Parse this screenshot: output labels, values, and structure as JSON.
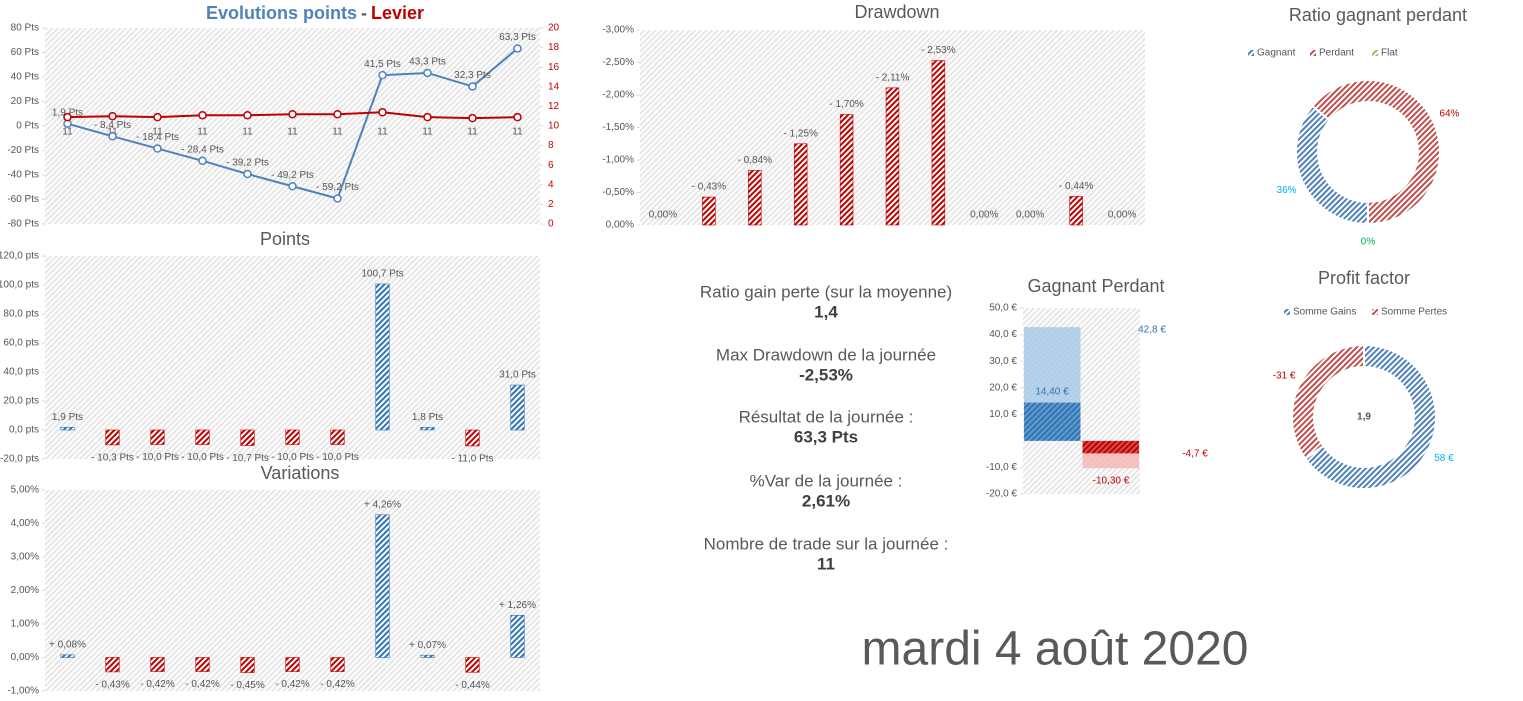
{
  "chart_data": [
    {
      "type": "line",
      "title": [
        "Evolutions points",
        "-",
        "Levier"
      ],
      "categories": [
        "11",
        "11",
        "11",
        "11",
        "11",
        "11",
        "11",
        "11",
        "11",
        "11",
        "11"
      ],
      "series": [
        {
          "color": "#4f81bd",
          "values": [
            1.9,
            -8.4,
            -18.4,
            -28.4,
            -39.2,
            -49.2,
            -59.2,
            41.5,
            43.3,
            32.3,
            63.3
          ],
          "value_labels": [
            "1,9 Pts",
            "- 8,4 Pts",
            "- 18,4 Pts",
            "- 28,4 Pts",
            "- 39,2 Pts",
            "- 49,2 Pts",
            "- 59,2 Pts",
            "41,5 Pts",
            "43,3 Pts",
            "32,3 Pts",
            "63,3 Pts"
          ]
        },
        {
          "color": "#c00000",
          "axis": "y2",
          "values": [
            10.9,
            11,
            10.9,
            11.1,
            11.1,
            11.2,
            11.2,
            11.4,
            10.9,
            10.8,
            10.9
          ]
        }
      ],
      "ylim": [
        -80,
        80
      ],
      "yticks": [
        {
          "value": -80,
          "label": "-80 Pts"
        },
        {
          "value": -60,
          "label": "-60 Pts"
        },
        {
          "value": -40,
          "label": "-40 Pts"
        },
        {
          "value": -20,
          "label": "-20 Pts"
        },
        {
          "value": 0,
          "label": "0 Pts"
        },
        {
          "value": 20,
          "label": "20 Pts"
        },
        {
          "value": 40,
          "label": "40 Pts"
        },
        {
          "value": 60,
          "label": "60 Pts"
        },
        {
          "value": 80,
          "label": "80 Pts"
        }
      ],
      "y2lim": [
        0,
        20
      ],
      "y2ticks": [
        0,
        2,
        4,
        6,
        8,
        10,
        12,
        14,
        16,
        18,
        20
      ],
      "grid": false
    },
    {
      "type": "bar",
      "title": "Points",
      "categories": [
        null,
        null,
        null,
        null,
        null,
        null,
        null,
        null,
        null,
        null,
        null
      ],
      "values": [
        1.9,
        -10.3,
        -10,
        -10,
        -10.7,
        -10,
        -10,
        100.7,
        1.8,
        -11,
        31
      ],
      "value_labels": [
        "1,9 Pts",
        "- 10,3 Pts",
        "- 10,0 Pts",
        "- 10,0 Pts",
        "- 10,7 Pts",
        "- 10,0 Pts",
        "- 10,0 Pts",
        "100,7 Pts",
        "1,8 Pts",
        "- 11,0 Pts",
        "31,0 Pts"
      ],
      "positive_color": "#2e75b6",
      "negative_color": "#c00000",
      "ylim": [
        -20,
        120
      ],
      "yticks": [
        {
          "value": -20,
          "label": "-20,0 pts"
        },
        {
          "value": 0,
          "label": "0,0 pts"
        },
        {
          "value": 20,
          "label": "20,0 pts"
        },
        {
          "value": 40,
          "label": "40,0 pts"
        },
        {
          "value": 60,
          "label": "60,0 pts"
        },
        {
          "value": 80,
          "label": "80,0 pts"
        },
        {
          "value": 100,
          "label": "100,0 pts"
        },
        {
          "value": 120,
          "label": "120,0 pts"
        }
      ],
      "grid": false
    },
    {
      "type": "bar",
      "title": "Variations",
      "categories": [
        null,
        null,
        null,
        null,
        null,
        null,
        null,
        null,
        null,
        null,
        null
      ],
      "values": [
        0.08,
        -0.43,
        -0.42,
        -0.42,
        -0.45,
        -0.42,
        -0.42,
        4.26,
        0.07,
        -0.44,
        1.26
      ],
      "value_labels": [
        "+ 0,08%",
        "- 0,43%",
        "- 0,42%",
        "- 0,42%",
        "- 0,45%",
        "- 0,42%",
        "- 0,42%",
        "+ 4,26%",
        "+ 0,07%",
        "- 0,44%",
        "+ 1,26%"
      ],
      "positive_color": "#2e75b6",
      "negative_color": "#c00000",
      "ylim": [
        -1,
        5
      ],
      "yticks": [
        {
          "value": -1,
          "label": "-1,00%"
        },
        {
          "value": 0,
          "label": "0,00%"
        },
        {
          "value": 1,
          "label": "1,00%"
        },
        {
          "value": 2,
          "label": "2,00%"
        },
        {
          "value": 3,
          "label": "3,00%"
        },
        {
          "value": 4,
          "label": "4,00%"
        },
        {
          "value": 5,
          "label": "5,00%"
        }
      ],
      "grid": false
    },
    {
      "type": "bar",
      "title": "Drawdown",
      "categories": [
        null,
        null,
        null,
        null,
        null,
        null,
        null,
        null,
        null,
        null,
        null
      ],
      "values": [
        0,
        -0.43,
        -0.84,
        -1.25,
        -1.7,
        -2.11,
        -2.53,
        0,
        0,
        -0.44,
        0
      ],
      "value_labels": [
        "0,00%",
        "- 0,43%",
        "- 0,84%",
        "- 1,25%",
        "- 1,70%",
        "- 2,11%",
        "- 2,53%",
        "0,00%",
        "0,00%",
        "- 0,44%",
        "0,00%"
      ],
      "color": "#c00000",
      "ylim": [
        0,
        -3
      ],
      "yticks": [
        {
          "value": 0,
          "label": "0,00%"
        },
        {
          "value": -0.5,
          "label": "-0,50%"
        },
        {
          "value": -1,
          "label": "-1,00%"
        },
        {
          "value": -1.5,
          "label": "-1,50%"
        },
        {
          "value": -2,
          "label": "-2,00%"
        },
        {
          "value": -2.5,
          "label": "-2,50%"
        },
        {
          "value": -3,
          "label": "-3,00%"
        }
      ],
      "grid": false
    },
    {
      "type": "pie",
      "title": "Ratio gagnant perdant",
      "categories": [
        "Gagnant",
        "Perdant",
        "Flat"
      ],
      "values": [
        36,
        64,
        0
      ],
      "value_labels": [
        "36%",
        "64%",
        "0%"
      ],
      "colors": [
        "#4f81bd",
        "#c0504d",
        "#9bbb59"
      ],
      "label_colors": [
        "#00b0f0",
        "#c00000",
        "#00b050"
      ],
      "legend": "top"
    },
    {
      "type": "pie",
      "title": "Profit factor",
      "categories": [
        "Somme Gains",
        "Somme Pertes"
      ],
      "values": [
        58,
        -31
      ],
      "value_labels": [
        "58 €",
        "-31 €"
      ],
      "colors": [
        "#4f81bd",
        "#c0504d"
      ],
      "label_colors": [
        "#00b0f0",
        "#c00000"
      ],
      "center_label": "1,9",
      "legend": "top"
    },
    {
      "type": "bar",
      "title": "Gagnant Perdant",
      "categories": [
        null,
        null
      ],
      "series": [
        {
          "values": [
            42.8,
            -10.3
          ],
          "value_labels": [
            "42,8 €",
            "-10,30 €"
          ],
          "colors": [
            "#9dc3e6",
            "#f4b0b0"
          ],
          "label_colors": [
            "#2e75b6",
            "#c00000"
          ]
        },
        {
          "values": [
            14.4,
            -4.7
          ],
          "value_labels": [
            "14,40 €",
            "-4,7 €"
          ],
          "colors": [
            "#2e75b6",
            "#c00000"
          ],
          "label_colors": [
            "#2e75b6",
            "#c00000"
          ]
        }
      ],
      "ylim": [
        -20,
        50
      ],
      "yticks": [
        {
          "value": -20,
          "label": "-20,0 €"
        },
        {
          "value": -10,
          "label": "-10,0 €"
        },
        {
          "value": 10,
          "label": "10,0 €"
        },
        {
          "value": 20,
          "label": "20,0 €"
        },
        {
          "value": 30,
          "label": "30,0 €"
        },
        {
          "value": 40,
          "label": "40,0 €"
        },
        {
          "value": 50,
          "label": "50,0 €"
        }
      ],
      "grid": false
    }
  ],
  "stats": [
    {
      "label": "Ratio gain perte (sur la moyenne)",
      "value": "1,4"
    },
    {
      "label": "Max Drawdown de la journée",
      "value": "-2,53%"
    },
    {
      "label": "Résultat de la journée :",
      "value": "63,3 Pts"
    },
    {
      "label": "%Var de la journée :",
      "value": "2,61%"
    },
    {
      "label": "Nombre de trade sur la journée :",
      "value": "11"
    }
  ],
  "date": "mardi 4 août 2020"
}
